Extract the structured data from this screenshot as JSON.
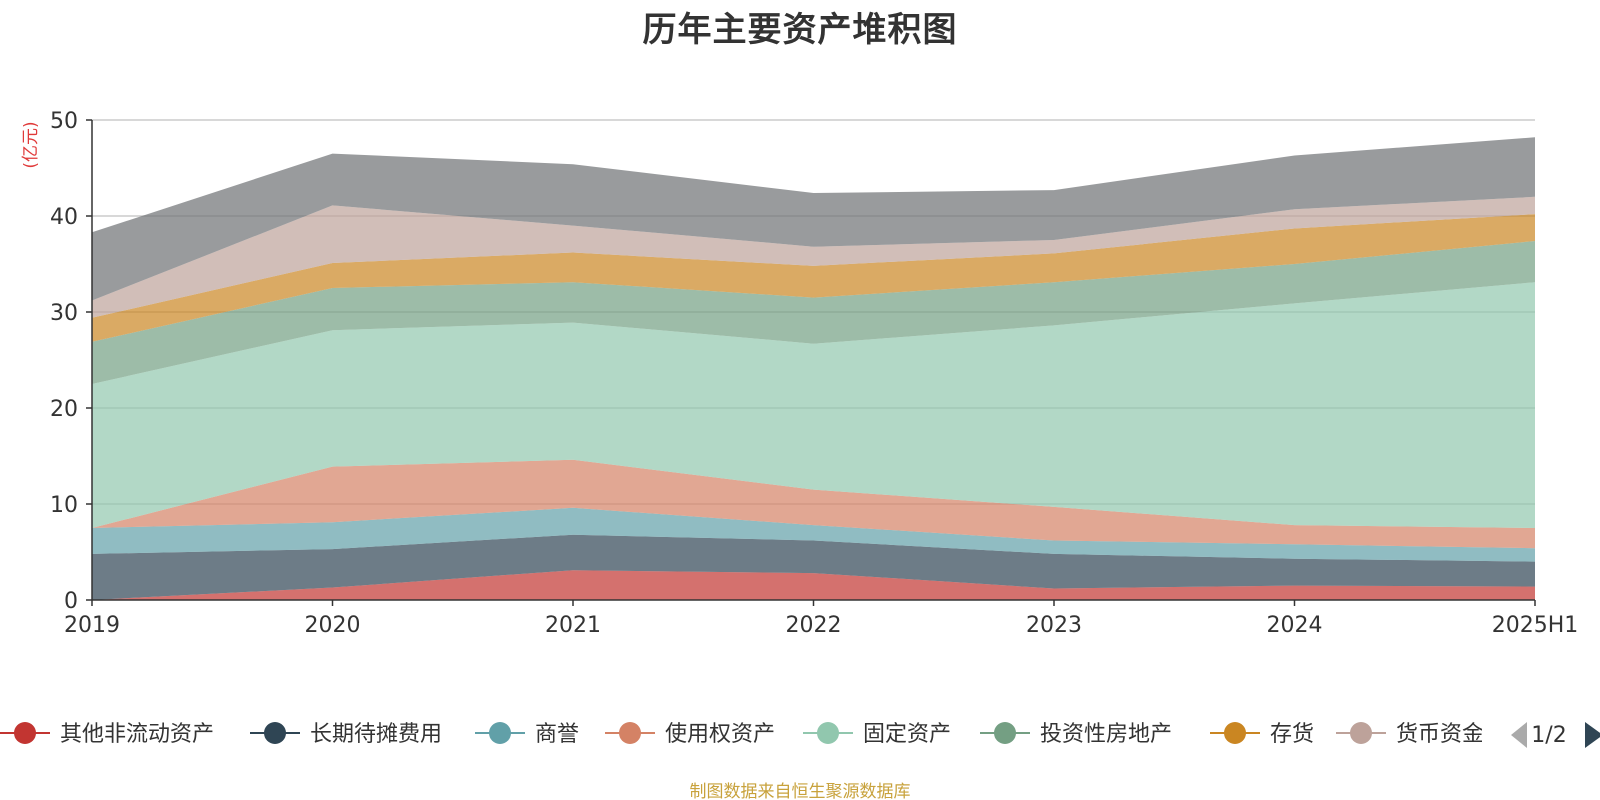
{
  "chart_data": {
    "type": "area",
    "stacked": true,
    "title": "历年主要资产堆积图",
    "ylabel": "(亿元)",
    "ylim": [
      0,
      50
    ],
    "yticks": [
      0,
      10,
      20,
      30,
      40,
      50
    ],
    "grid": true,
    "legend_position": "bottom",
    "legend_page": "1/2",
    "categories": [
      "2019",
      "2020",
      "2021",
      "2022",
      "2023",
      "2024",
      "2025H1"
    ],
    "series": [
      {
        "name": "其他非流动资产",
        "color": "#c23531",
        "values": [
          0.0,
          1.3,
          3.1,
          2.8,
          1.2,
          1.5,
          1.4
        ]
      },
      {
        "name": "长期待摊费用",
        "color": "#2f4554",
        "values": [
          4.8,
          4.0,
          3.7,
          3.4,
          3.6,
          2.8,
          2.6
        ]
      },
      {
        "name": "商誉",
        "color": "#61a0a8",
        "values": [
          2.7,
          2.8,
          2.8,
          1.6,
          1.4,
          1.5,
          1.4
        ]
      },
      {
        "name": "使用权资产",
        "color": "#d48265",
        "values": [
          0.0,
          5.8,
          5.0,
          3.7,
          3.5,
          2.0,
          2.1
        ]
      },
      {
        "name": "固定资产",
        "color": "#91c7ae",
        "values": [
          15.0,
          14.2,
          14.3,
          15.2,
          18.9,
          23.1,
          25.6
        ]
      },
      {
        "name": "投资性房地产",
        "color": "#749f83",
        "values": [
          4.4,
          4.4,
          4.2,
          4.8,
          4.5,
          4.1,
          4.3
        ]
      },
      {
        "name": "存货",
        "color": "#ca8622",
        "values": [
          2.5,
          2.6,
          3.1,
          3.3,
          3.0,
          3.7,
          2.8
        ]
      },
      {
        "name": "货币资金",
        "color": "#bda29a",
        "values": [
          1.8,
          6.0,
          2.8,
          2.0,
          1.4,
          2.0,
          1.8
        ]
      },
      {
        "name": "",
        "color": "#6e7074",
        "values": [
          7.1,
          5.4,
          6.4,
          5.6,
          5.2,
          5.6,
          6.2
        ]
      }
    ]
  },
  "source_note": "制图数据来自恒生聚源数据库"
}
